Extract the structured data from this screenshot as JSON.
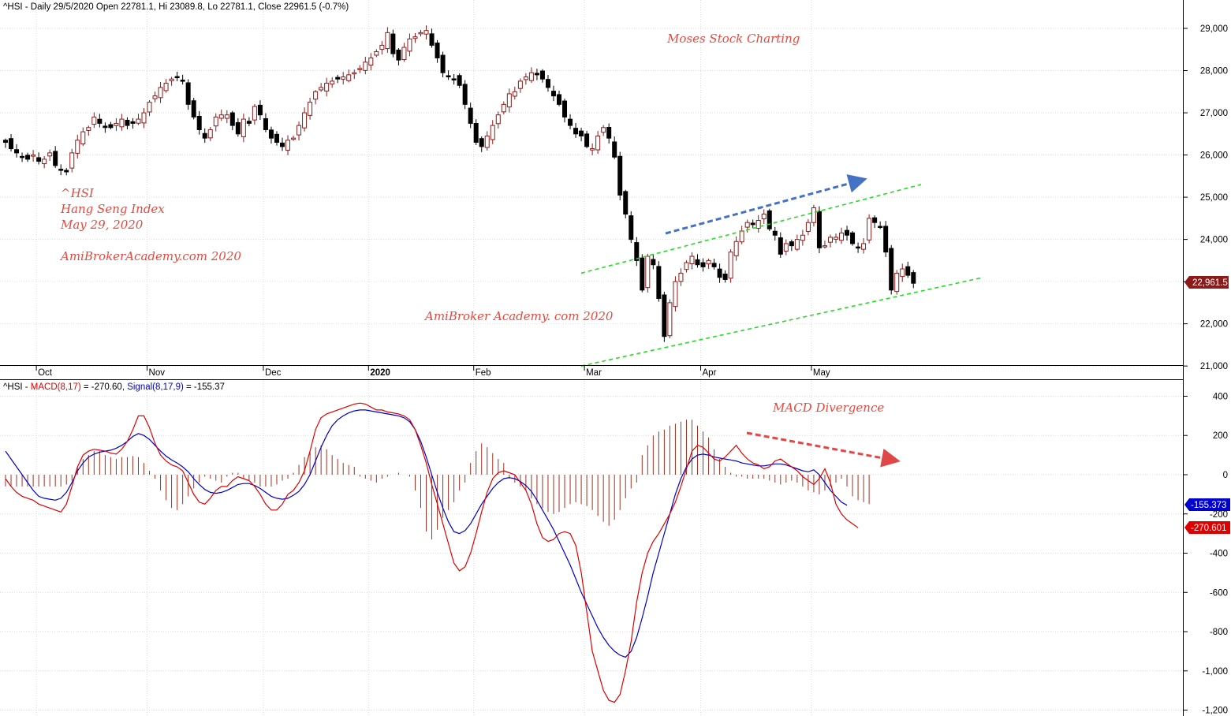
{
  "header": {
    "top_info": "^HSI - Daily 29/5/2020 Open 22781.1, Hi 23089.8, Lo 22781.1, Close 22961.5 (-0.7%)",
    "macd_prefix": "^HSI - ",
    "macd_label": "MACD(8,17)",
    "macd_value": " = -270.60, ",
    "signal_label": "Signal(8,17,9)",
    "signal_value": " = -155.37"
  },
  "annotations": {
    "brand": "Moses Stock Charting",
    "symbol": "^HSI",
    "name": "Hang Seng Index",
    "date": "May 29, 2020",
    "site1": "AmiBrokerAcademy.com  2020",
    "site2": "AmiBroker Academy. com  2020",
    "divergence": "MACD Divergence"
  },
  "price_tag": "22,961.5",
  "macd_tag": "-270.601",
  "signal_tag": "-155.373",
  "colors": {
    "up_candle": "#8b1a1a",
    "down_candle": "#000000",
    "macd_line": "#e00000",
    "signal_line": "#0000cc",
    "histogram": "#a0321e",
    "trend_channel": "#22dd22",
    "up_arrow": "#4472c4",
    "down_arrow": "#e04848",
    "annotation_text": "#e8483c"
  },
  "chart_data": [
    {
      "type": "candlestick",
      "title": "^HSI - Daily 29/5/2020 Open 22781.1, Hi 23089.8, Lo 22781.1, Close 22961.5 (-0.7%)",
      "x_tick_labels": [
        "Oct",
        "Nov",
        "Dec",
        "2020",
        "Feb",
        "Mar",
        "Apr",
        "May"
      ],
      "y_tick_labels": [
        "29,000",
        "28,000",
        "27,000",
        "26,000",
        "25,000",
        "24,000",
        "23,000",
        "22,000",
        "21,000"
      ],
      "ylim": [
        21000,
        29500
      ],
      "last_close": 22961.5,
      "trend_channel": {
        "upper": [
          [
            0.0,
            23200
          ],
          [
            1.0,
            25300
          ]
        ],
        "lower": [
          [
            0.0,
            21000
          ],
          [
            1.0,
            23100
          ]
        ]
      },
      "closes": [
        26300,
        26150,
        26050,
        25950,
        25900,
        26000,
        25850,
        25900,
        26050,
        25750,
        25650,
        25600,
        26050,
        26350,
        26550,
        26650,
        26900,
        26750,
        26650,
        26650,
        26750,
        26850,
        26700,
        26750,
        26850,
        27000,
        27250,
        27400,
        27600,
        27700,
        27800,
        27850,
        27750,
        27200,
        26900,
        26600,
        26400,
        26600,
        26900,
        26950,
        26950,
        26700,
        26500,
        26850,
        26750,
        27150,
        26950,
        26600,
        26400,
        26300,
        26200,
        26350,
        26400,
        26700,
        27000,
        27250,
        27500,
        27600,
        27700,
        27750,
        27800,
        27850,
        27900,
        27950,
        28050,
        28200,
        28300,
        28450,
        28600,
        28900,
        28400,
        28250,
        28550,
        28750,
        28800,
        28900,
        28950,
        28600,
        28300,
        27950,
        27850,
        27800,
        27650,
        27200,
        26750,
        26300,
        26200,
        26450,
        26700,
        26950,
        27200,
        27450,
        27500,
        27750,
        27850,
        27950,
        27900,
        27800,
        27600,
        27400,
        27200,
        26900,
        26700,
        26500,
        26450,
        26200,
        26150,
        26450,
        26650,
        26400,
        25950,
        25050,
        24600,
        24000,
        23500,
        22800,
        23600,
        23400,
        22600,
        21700,
        22500,
        23000,
        23200,
        23450,
        23600,
        23400,
        23350,
        23500,
        23350,
        23100,
        23050,
        23700,
        23950,
        24200,
        24400,
        24350,
        24450,
        24600,
        24250,
        24100,
        23650,
        23900,
        23850,
        24000,
        24100,
        24400,
        24750,
        23800,
        23850,
        24050,
        24050,
        24150,
        24100,
        23900,
        23800,
        23900,
        24500,
        24400,
        24300,
        23700,
        22800,
        23200,
        23300,
        23150,
        22961.5
      ]
    },
    {
      "type": "line",
      "title": "^HSI - MACD(8,17) = -270.60, Signal(8,17,9) = -155.37",
      "y_tick_labels": [
        "400",
        "200",
        "0",
        "-200",
        "-400",
        "-600",
        "-800",
        "-1,000",
        "-1,200"
      ],
      "ylim": [
        -1260,
        480
      ],
      "series": [
        {
          "name": "MACD(8,17)",
          "last": -270.6,
          "values": [
            -20,
            -60,
            -90,
            -110,
            -120,
            -130,
            -150,
            -160,
            -170,
            -180,
            -190,
            -150,
            -60,
            40,
            100,
            120,
            130,
            125,
            120,
            110,
            105,
            130,
            170,
            230,
            300,
            300,
            240,
            160,
            100,
            70,
            50,
            40,
            20,
            -40,
            -100,
            -140,
            -150,
            -120,
            -80,
            -60,
            -60,
            -30,
            -10,
            -20,
            -30,
            -60,
            -100,
            -150,
            -180,
            -180,
            -150,
            -100,
            -80,
            -40,
            20,
            120,
            230,
            290,
            310,
            320,
            330,
            340,
            350,
            360,
            365,
            360,
            345,
            330,
            330,
            320,
            315,
            310,
            300,
            280,
            230,
            150,
            60,
            -50,
            -150,
            -250,
            -350,
            -450,
            -490,
            -470,
            -400,
            -300,
            -190,
            -90,
            -20,
            10,
            20,
            10,
            0,
            -40,
            -80,
            -150,
            -250,
            -320,
            -340,
            -330,
            -300,
            -290,
            -300,
            -360,
            -500,
            -700,
            -900,
            -1000,
            -1100,
            -1150,
            -1160,
            -1120,
            -1000,
            -850,
            -650,
            -500,
            -400,
            -340,
            -300,
            -250,
            -200,
            -140,
            -60,
            30,
            120,
            150,
            140,
            110,
            80,
            70,
            90,
            120,
            150,
            110,
            80,
            60,
            50,
            30,
            40,
            70,
            80,
            60,
            40,
            20,
            -10,
            -30,
            -50,
            -20,
            30,
            -40,
            -150,
            -200,
            -230,
            -250,
            -270.6
          ]
        },
        {
          "name": "Signal(8,17,9)",
          "last": -155.37,
          "values": [
            120,
            80,
            40,
            0,
            -40,
            -80,
            -110,
            -120,
            -125,
            -130,
            -120,
            -90,
            -40,
            20,
            60,
            90,
            105,
            115,
            120,
            125,
            135,
            150,
            170,
            195,
            210,
            200,
            180,
            150,
            120,
            95,
            75,
            60,
            40,
            15,
            -20,
            -50,
            -75,
            -90,
            -95,
            -90,
            -80,
            -65,
            -50,
            -45,
            -45,
            -55,
            -70,
            -90,
            -110,
            -120,
            -125,
            -120,
            -105,
            -85,
            -50,
            0,
            70,
            140,
            200,
            250,
            280,
            300,
            315,
            325,
            330,
            330,
            325,
            320,
            315,
            310,
            305,
            300,
            290,
            270,
            230,
            170,
            90,
            0,
            -90,
            -170,
            -240,
            -290,
            -300,
            -285,
            -250,
            -200,
            -150,
            -110,
            -70,
            -40,
            -20,
            -15,
            -20,
            -35,
            -55,
            -85,
            -130,
            -180,
            -230,
            -280,
            -340,
            -400,
            -460,
            -530,
            -600,
            -660,
            -720,
            -780,
            -830,
            -870,
            -900,
            -920,
            -930,
            -900,
            -830,
            -730,
            -620,
            -500,
            -400,
            -300,
            -200,
            -100,
            -20,
            40,
            80,
            100,
            105,
            100,
            90,
            85,
            80,
            75,
            70,
            60,
            55,
            50,
            45,
            45,
            50,
            55,
            55,
            50,
            40,
            30,
            20,
            15,
            25,
            0,
            -40,
            -80,
            -110,
            -140,
            -155.37
          ]
        },
        {
          "name": "histogram",
          "values": [
            -60,
            -60,
            -60,
            -60,
            -60,
            -60,
            -60,
            -60,
            -60,
            -60,
            -60,
            -50,
            -30,
            40,
            80,
            100,
            120,
            120,
            100,
            90,
            80,
            90,
            90,
            95,
            90,
            60,
            20,
            -20,
            -80,
            -130,
            -170,
            -180,
            -150,
            -110,
            -70,
            -40,
            -10,
            -20,
            -30,
            -40,
            -10,
            10,
            10,
            -20,
            -30,
            -40,
            -60,
            -60,
            -60,
            -50,
            -30,
            -20,
            10,
            50,
            90,
            120,
            140,
            150,
            130,
            100,
            80,
            60,
            50,
            40,
            -10,
            -20,
            -30,
            -40,
            -20,
            -10,
            0,
            10,
            0,
            -10,
            -80,
            -170,
            -290,
            -330,
            -280,
            -220,
            -180,
            -140,
            -80,
            -40,
            60,
            120,
            160,
            140,
            110,
            80,
            60,
            -20,
            -40,
            -60,
            -80,
            -120,
            -150,
            -170,
            -190,
            -200,
            -190,
            -170,
            -150,
            -140,
            -150,
            -160,
            -180,
            -210,
            -240,
            -260,
            -230,
            -180,
            -120,
            -70,
            -40,
            100,
            150,
            200,
            220,
            230,
            250,
            260,
            270,
            280,
            280,
            250,
            220,
            190,
            130,
            80,
            40,
            10,
            -10,
            -10,
            -20,
            -20,
            -20,
            -20,
            -30,
            -40,
            -50,
            -40,
            -30,
            -40,
            -60,
            -80,
            -90,
            -100,
            -80,
            -60,
            -40,
            -20,
            -60,
            -110,
            -130,
            -140,
            -150
          ]
        }
      ]
    }
  ]
}
